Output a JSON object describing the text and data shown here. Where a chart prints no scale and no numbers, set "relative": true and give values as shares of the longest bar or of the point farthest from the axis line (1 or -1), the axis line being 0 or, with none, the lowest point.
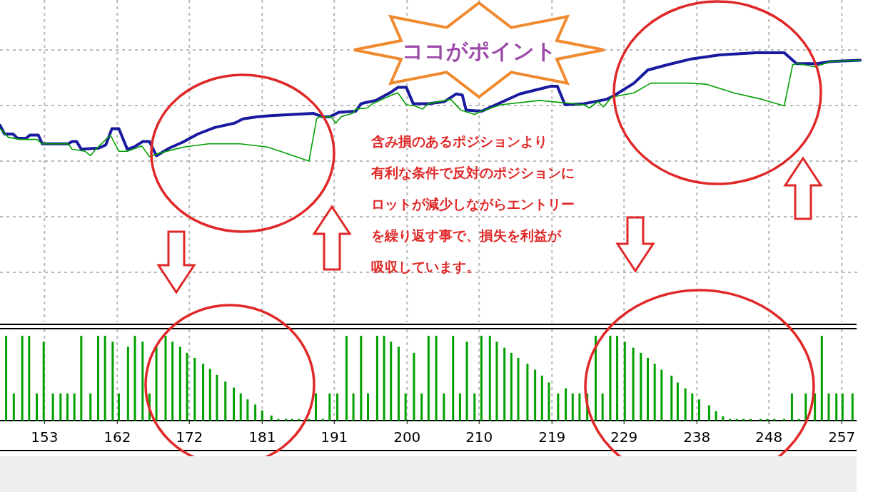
{
  "chart_data": [
    {
      "type": "line",
      "relative": true,
      "xlim": [
        147.2,
        259.4
      ],
      "xticks": [
        {
          "value": 153,
          "label": null
        },
        {
          "value": 162.5,
          "label": null
        },
        {
          "value": 171.9,
          "label": null
        },
        {
          "value": 181.4,
          "label": null
        },
        {
          "value": 190.8,
          "label": null
        },
        {
          "value": 200.3,
          "label": null
        },
        {
          "value": 209.7,
          "label": null
        },
        {
          "value": 219.2,
          "label": null
        },
        {
          "value": 228.6,
          "label": null
        },
        {
          "value": 238.1,
          "label": null
        },
        {
          "value": 247.5,
          "label": null
        },
        {
          "value": 257,
          "label": null
        }
      ],
      "tick_labels": false,
      "grid": true,
      "annotations": [
        "ココがポイント",
        "含み損のあるポジションより",
        "有利な条件で反対のポジションに",
        "ロットが減少しながらエントリー",
        "を繰り返す事で、損失を利益が",
        "吸収しています。"
      ],
      "series": [
        {
          "color": "#1a1aa0",
          "x": [
            147.2,
            147.8,
            148.9,
            149.5,
            150.6,
            151.1,
            152.2,
            152.7,
            156.1,
            156.6,
            157.2,
            157.8,
            160.1,
            161.0,
            161.8,
            162.7,
            163.8,
            164.7,
            165.8,
            166.7,
            167.6,
            169.3,
            171.2,
            173.0,
            175.2,
            177.8,
            178.9,
            180.8,
            182.5,
            188.1,
            189.2,
            190.2,
            191.4,
            193.6,
            194.3,
            196.2,
            198.3,
            199.1,
            200.2,
            201.1,
            202.4,
            203.1,
            205.2,
            206.7,
            207.5,
            208.0,
            210.0,
            215.0,
            219.0,
            219.9,
            220.9,
            223.4,
            226.3,
            227.2,
            229.9,
            231.7,
            234.3,
            237.2,
            241.1,
            245.8,
            249.5,
            251.1,
            253.8,
            255.6,
            259.4
          ],
          "values": [
            0.33,
            0.25,
            0.25,
            0.21,
            0.21,
            0.24,
            0.24,
            0.16,
            0.16,
            0.18,
            0.18,
            0.11,
            0.12,
            0.15,
            0.3,
            0.3,
            0.11,
            0.13,
            0.18,
            0.18,
            0.05,
            0.12,
            0.18,
            0.25,
            0.31,
            0.35,
            0.39,
            0.41,
            0.42,
            0.44,
            0.41,
            0.41,
            0.45,
            0.46,
            0.53,
            0.56,
            0.64,
            0.68,
            0.68,
            0.53,
            0.53,
            0.53,
            0.55,
            0.62,
            0.61,
            0.47,
            0.46,
            0.62,
            0.69,
            0.69,
            0.52,
            0.53,
            0.57,
            0.6,
            0.72,
            0.84,
            0.89,
            0.94,
            0.98,
            1.0,
            1.0,
            0.9,
            0.9,
            0.92,
            0.93
          ]
        },
        {
          "color": "#00a000",
          "x": [
            147.2,
            148.3,
            149.8,
            152.0,
            152.7,
            156.1,
            156.6,
            158.3,
            159.0,
            159.7,
            161.6,
            162.7,
            163.8,
            165.7,
            166.7,
            167.8,
            171.2,
            174.4,
            178.5,
            182.1,
            185.9,
            187.5,
            188.5,
            188.9,
            190.4,
            191.0,
            191.7,
            193.2,
            193.6,
            195.1,
            195.8,
            198.3,
            199.1,
            200.2,
            201.3,
            202.3,
            203.1,
            206.0,
            207.3,
            209.1,
            210.0,
            212.5,
            217.6,
            219.0,
            223.4,
            224.1,
            225.2,
            225.9,
            227.0,
            229.9,
            232.1,
            237.2,
            239.3,
            242.9,
            246.6,
            249.5,
            250.6,
            251.3,
            253.5,
            255.6,
            259.4
          ],
          "values": [
            0.3,
            0.22,
            0.2,
            0.2,
            0.16,
            0.16,
            0.11,
            0.09,
            0.05,
            0.11,
            0.24,
            0.09,
            0.09,
            0.14,
            0.04,
            0.07,
            0.13,
            0.16,
            0.16,
            0.13,
            0.04,
            0.0,
            0.39,
            0.41,
            0.41,
            0.35,
            0.41,
            0.44,
            0.48,
            0.49,
            0.53,
            0.61,
            0.63,
            0.52,
            0.51,
            0.48,
            0.53,
            0.57,
            0.47,
            0.43,
            0.46,
            0.52,
            0.56,
            0.55,
            0.52,
            0.49,
            0.55,
            0.5,
            0.59,
            0.63,
            0.72,
            0.72,
            0.71,
            0.63,
            0.57,
            0.51,
            0.89,
            0.9,
            0.87,
            0.92,
            0.93
          ]
        }
      ]
    },
    {
      "type": "bar",
      "relative": true,
      "xlim": [
        147.2,
        259.4
      ],
      "xticks": [
        153,
        {
          "value": 162.5,
          "label": "162"
        },
        {
          "value": 171.9,
          "label": "172"
        },
        {
          "value": 181.4,
          "label": "181"
        },
        {
          "value": 190.8,
          "label": "191"
        },
        {
          "value": 200.3,
          "label": "200"
        },
        {
          "value": 209.7,
          "label": "210"
        },
        {
          "value": 219.2,
          "label": "219"
        },
        {
          "value": 228.6,
          "label": "229"
        },
        {
          "value": 238.1,
          "label": "238"
        },
        {
          "value": 247.5,
          "label": "248"
        },
        {
          "value": 257,
          "label": "257"
        }
      ],
      "tick_labels": "x",
      "grid": "x",
      "color": "#00a000",
      "x": [
        148.0,
        149.0,
        150.1,
        151.0,
        152.0,
        152.9,
        154.1,
        155.1,
        156.0,
        156.9,
        157.8,
        159.0,
        160.0,
        160.9,
        161.9,
        162.7,
        163.9,
        164.8,
        165.8,
        166.7,
        167.6,
        168.8,
        169.7,
        170.7,
        171.6,
        172.6,
        173.7,
        174.6,
        175.5,
        176.6,
        177.7,
        178.6,
        179.5,
        180.5,
        181.4,
        182.6,
        183.5,
        184.5,
        185.3,
        186.2,
        187.5,
        188.4,
        189.3,
        190.2,
        191.2,
        192.4,
        193.3,
        194.3,
        195.2,
        196.4,
        197.3,
        198.2,
        199.2,
        200.1,
        201.2,
        202.2,
        203.1,
        204.1,
        205.1,
        206.3,
        207.2,
        208.1,
        209.1,
        210.0,
        211.1,
        212.0,
        213.0,
        213.9,
        214.8,
        216.0,
        217.0,
        217.9,
        218.8,
        220.0,
        221.0,
        221.9,
        222.8,
        223.8,
        224.9,
        225.8,
        226.8,
        227.7,
        228.7,
        229.8,
        230.8,
        231.7,
        232.6,
        233.5,
        234.8,
        235.6,
        236.6,
        237.5,
        238.4,
        239.7,
        240.6,
        241.5,
        242.4,
        243.3,
        244.2,
        245.1,
        246.4,
        247.3,
        248.2,
        249.5,
        250.5,
        251.4,
        252.3,
        253.5,
        254.4,
        255.3,
        256.3,
        257.1,
        258.4
      ],
      "values": [
        1.0,
        0.32,
        1.0,
        1.0,
        0.32,
        0.93,
        0.32,
        0.32,
        0.32,
        0.32,
        1.0,
        0.32,
        1.0,
        1.0,
        0.93,
        0.32,
        0.87,
        1.0,
        0.93,
        0.32,
        0.87,
        1.0,
        0.93,
        0.87,
        0.8,
        0.74,
        0.67,
        0.61,
        0.54,
        0.46,
        0.39,
        0.32,
        0.25,
        0.19,
        0.12,
        0.06,
        0.02,
        0.02,
        0.02,
        0.02,
        0.02,
        0.32,
        0.02,
        0.32,
        0.32,
        1.0,
        0.32,
        1.0,
        0.32,
        1.0,
        1.0,
        0.93,
        0.87,
        0.32,
        0.8,
        0.32,
        1.0,
        1.0,
        0.32,
        1.0,
        0.32,
        0.93,
        0.32,
        1.0,
        1.0,
        0.93,
        0.86,
        0.8,
        0.74,
        0.67,
        0.6,
        0.53,
        0.45,
        0.32,
        0.38,
        0.32,
        0.32,
        0.32,
        1.0,
        0.32,
        1.0,
        1.0,
        0.93,
        0.86,
        0.8,
        0.74,
        0.67,
        0.6,
        0.53,
        0.45,
        0.38,
        0.32,
        0.25,
        0.18,
        0.11,
        0.05,
        0.02,
        0.02,
        0.02,
        0.02,
        0.02,
        0.02,
        0.02,
        0.02,
        0.32,
        0.02,
        0.32,
        0.32,
        1.0,
        0.32,
        0.32,
        0.32,
        0.32
      ]
    }
  ]
}
